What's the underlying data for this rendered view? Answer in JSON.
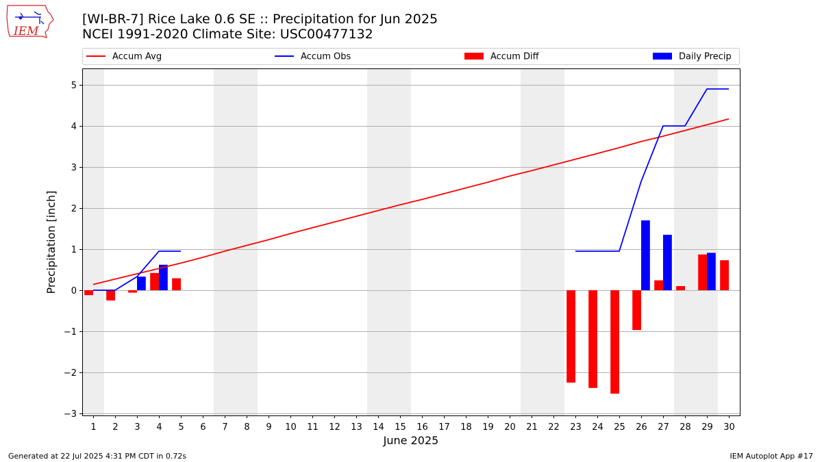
{
  "header": {
    "title_line1": "[WI-BR-7] Rice Lake 0.6 SE :: Precipitation for Jun 2025",
    "title_line2": "NCEI 1991-2020 Climate Site: USC00477132"
  },
  "footer": {
    "generated": "Generated at 22 Jul 2025 4:31 PM CDT in 0.72s",
    "app": "IEM Autoplot App #17"
  },
  "logo": {
    "text": "IEM",
    "icon": "iowa-state-outline-logo",
    "color": "#d22222"
  },
  "chart_data": {
    "type": "bar",
    "title": "[WI-BR-7] Rice Lake 0.6 SE :: Precipitation for Jun 2025",
    "subtitle": "NCEI 1991-2020 Climate Site: USC00477132",
    "xlabel": "June 2025",
    "ylabel": "Precipitation [inch]",
    "ylim": [
      -3.05,
      5.4
    ],
    "xlim": [
      0.5,
      30.5
    ],
    "yticks": [
      -3,
      -2,
      -1,
      0,
      1,
      2,
      3,
      4,
      5
    ],
    "ytick_labels": [
      "−3",
      "−2",
      "−1",
      "0",
      "1",
      "2",
      "3",
      "4",
      "5"
    ],
    "xticks": [
      1,
      2,
      3,
      4,
      5,
      6,
      7,
      8,
      9,
      10,
      11,
      12,
      13,
      14,
      15,
      16,
      17,
      18,
      19,
      20,
      21,
      22,
      23,
      24,
      25,
      26,
      27,
      28,
      29,
      30
    ],
    "grid": "horizontal",
    "legend_placement": "top",
    "weekend_shading": [
      [
        0.5,
        1.5
      ],
      [
        6.5,
        8.5
      ],
      [
        13.5,
        15.5
      ],
      [
        20.5,
        22.5
      ],
      [
        27.5,
        29.5
      ]
    ],
    "colors": {
      "accum_avg": "#ff0000",
      "accum_obs": "#0000ff",
      "accum_diff": "#ff0000",
      "daily_precip": "#0000ff",
      "shade": "#eeeeee",
      "grid": "#b0b0b0"
    },
    "series": [
      {
        "name": "Accum Avg",
        "kind": "line",
        "x": [
          1,
          2,
          3,
          4,
          5,
          6,
          7,
          8,
          9,
          10,
          11,
          12,
          13,
          14,
          15,
          16,
          17,
          18,
          19,
          20,
          21,
          22,
          23,
          24,
          25,
          26,
          27,
          28,
          29,
          30
        ],
        "values": [
          0.14,
          0.27,
          0.4,
          0.53,
          0.66,
          0.8,
          0.95,
          1.09,
          1.23,
          1.38,
          1.52,
          1.66,
          1.8,
          1.94,
          2.08,
          2.21,
          2.35,
          2.49,
          2.63,
          2.78,
          2.91,
          3.05,
          3.19,
          3.33,
          3.47,
          3.62,
          3.75,
          3.89,
          4.03,
          4.17
        ]
      },
      {
        "name": "Accum Obs",
        "kind": "line",
        "x": [
          1,
          2,
          3,
          4,
          5,
          null,
          23,
          24,
          25,
          26,
          27,
          28,
          29,
          30
        ],
        "values": [
          0.0,
          0.0,
          0.33,
          0.95,
          0.95,
          null,
          0.95,
          0.95,
          0.95,
          2.65,
          4.0,
          4.0,
          4.9,
          4.9
        ]
      },
      {
        "name": "Accum Diff",
        "kind": "bar",
        "x": [
          1,
          2,
          3,
          4,
          5,
          23,
          24,
          25,
          26,
          27,
          28,
          29,
          30
        ],
        "values": [
          -0.12,
          -0.25,
          -0.06,
          0.42,
          0.29,
          -2.25,
          -2.38,
          -2.52,
          -0.97,
          0.24,
          0.1,
          0.87,
          0.73
        ]
      },
      {
        "name": "Daily Precip",
        "kind": "bar",
        "x": [
          3,
          4,
          26,
          27,
          29
        ],
        "values": [
          0.33,
          0.62,
          1.7,
          1.35,
          0.91
        ]
      }
    ]
  }
}
